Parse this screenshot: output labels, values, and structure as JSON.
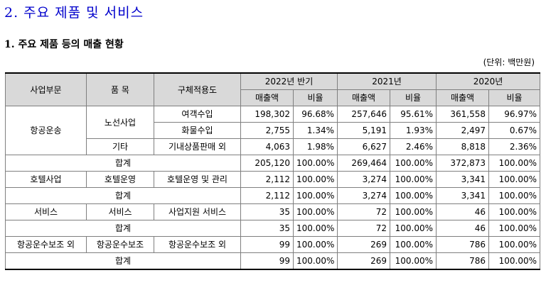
{
  "section_title": "2. 주요 제품 및 서비스",
  "subsection_title": "1. 주요 제품 등의 매출 현황",
  "unit_note": "(단위: 백만원)",
  "table": {
    "header": {
      "segment": "사업부문",
      "item": "품 목",
      "usage": "구체적용도",
      "periods": [
        "2022년 반기",
        "2021년",
        "2020년"
      ],
      "sales": "매출액",
      "ratio": "비율"
    },
    "rows": {
      "air_route": {
        "segment": "항공운송",
        "item": "노선사업",
        "usage": "여객수입",
        "v": [
          "198,302",
          "96.68%",
          "257,646",
          "95.61%",
          "361,558",
          "96.97%"
        ]
      },
      "air_cargo": {
        "usage": "화물수입",
        "v": [
          "2,755",
          "1.34%",
          "5,191",
          "1.93%",
          "2,497",
          "0.67%"
        ]
      },
      "air_other": {
        "item": "기타",
        "usage": "기내상품판매 외",
        "v": [
          "4,063",
          "1.98%",
          "6,627",
          "2.46%",
          "8,818",
          "2.36%"
        ]
      },
      "air_total": {
        "label": "합계",
        "v": [
          "205,120",
          "100.00%",
          "269,464",
          "100.00%",
          "372,873",
          "100.00%"
        ]
      },
      "hotel": {
        "segment": "호텔사업",
        "item": "호텔운영",
        "usage": "호텔운영 및 관리",
        "v": [
          "2,112",
          "100.00%",
          "3,274",
          "100.00%",
          "3,341",
          "100.00%"
        ]
      },
      "hotel_total": {
        "label": "합계",
        "v": [
          "2,112",
          "100.00%",
          "3,274",
          "100.00%",
          "3,341",
          "100.00%"
        ]
      },
      "service": {
        "segment": "서비스",
        "item": "서비스",
        "usage": "사업지원 서비스",
        "v": [
          "35",
          "100.00%",
          "72",
          "100.00%",
          "46",
          "100.00%"
        ]
      },
      "service_total": {
        "label": "합계",
        "v": [
          "35",
          "100.00%",
          "72",
          "100.00%",
          "46",
          "100.00%"
        ]
      },
      "aux": {
        "segment": "항공운수보조 외",
        "item": "항공운수보조",
        "usage": "항공운수보조 외",
        "v": [
          "99",
          "100.00%",
          "269",
          "100.00%",
          "786",
          "100.00%"
        ]
      },
      "aux_total": {
        "label": "합계",
        "v": [
          "99",
          "100.00%",
          "269",
          "100.00%",
          "786",
          "100.00%"
        ]
      }
    }
  }
}
